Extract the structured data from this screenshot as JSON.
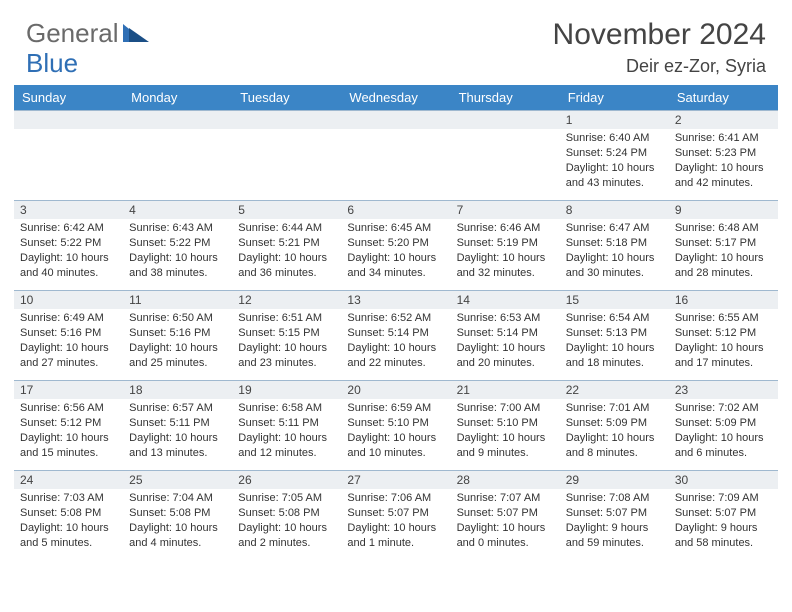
{
  "logo": {
    "text1": "General",
    "text2": "Blue"
  },
  "header": {
    "title": "November 2024",
    "location": "Deir ez-Zor, Syria"
  },
  "style": {
    "header_bg": "#3b85c6",
    "header_fg": "#ffffff",
    "border_color": "#9fb8cf",
    "daynum_bg": "#eceff2",
    "text_color": "#333333",
    "title_color": "#444444",
    "logo_gray": "#6a6a6a",
    "logo_blue": "#2f6fb5",
    "font_day": 11,
    "font_header": 13,
    "font_title": 30,
    "font_location": 18
  },
  "weekdays": [
    "Sunday",
    "Monday",
    "Tuesday",
    "Wednesday",
    "Thursday",
    "Friday",
    "Saturday"
  ],
  "weeks": [
    [
      null,
      null,
      null,
      null,
      null,
      {
        "n": "1",
        "sr": "6:40 AM",
        "ss": "5:24 PM",
        "dl": "10 hours and 43 minutes."
      },
      {
        "n": "2",
        "sr": "6:41 AM",
        "ss": "5:23 PM",
        "dl": "10 hours and 42 minutes."
      }
    ],
    [
      {
        "n": "3",
        "sr": "6:42 AM",
        "ss": "5:22 PM",
        "dl": "10 hours and 40 minutes."
      },
      {
        "n": "4",
        "sr": "6:43 AM",
        "ss": "5:22 PM",
        "dl": "10 hours and 38 minutes."
      },
      {
        "n": "5",
        "sr": "6:44 AM",
        "ss": "5:21 PM",
        "dl": "10 hours and 36 minutes."
      },
      {
        "n": "6",
        "sr": "6:45 AM",
        "ss": "5:20 PM",
        "dl": "10 hours and 34 minutes."
      },
      {
        "n": "7",
        "sr": "6:46 AM",
        "ss": "5:19 PM",
        "dl": "10 hours and 32 minutes."
      },
      {
        "n": "8",
        "sr": "6:47 AM",
        "ss": "5:18 PM",
        "dl": "10 hours and 30 minutes."
      },
      {
        "n": "9",
        "sr": "6:48 AM",
        "ss": "5:17 PM",
        "dl": "10 hours and 28 minutes."
      }
    ],
    [
      {
        "n": "10",
        "sr": "6:49 AM",
        "ss": "5:16 PM",
        "dl": "10 hours and 27 minutes."
      },
      {
        "n": "11",
        "sr": "6:50 AM",
        "ss": "5:16 PM",
        "dl": "10 hours and 25 minutes."
      },
      {
        "n": "12",
        "sr": "6:51 AM",
        "ss": "5:15 PM",
        "dl": "10 hours and 23 minutes."
      },
      {
        "n": "13",
        "sr": "6:52 AM",
        "ss": "5:14 PM",
        "dl": "10 hours and 22 minutes."
      },
      {
        "n": "14",
        "sr": "6:53 AM",
        "ss": "5:14 PM",
        "dl": "10 hours and 20 minutes."
      },
      {
        "n": "15",
        "sr": "6:54 AM",
        "ss": "5:13 PM",
        "dl": "10 hours and 18 minutes."
      },
      {
        "n": "16",
        "sr": "6:55 AM",
        "ss": "5:12 PM",
        "dl": "10 hours and 17 minutes."
      }
    ],
    [
      {
        "n": "17",
        "sr": "6:56 AM",
        "ss": "5:12 PM",
        "dl": "10 hours and 15 minutes."
      },
      {
        "n": "18",
        "sr": "6:57 AM",
        "ss": "5:11 PM",
        "dl": "10 hours and 13 minutes."
      },
      {
        "n": "19",
        "sr": "6:58 AM",
        "ss": "5:11 PM",
        "dl": "10 hours and 12 minutes."
      },
      {
        "n": "20",
        "sr": "6:59 AM",
        "ss": "5:10 PM",
        "dl": "10 hours and 10 minutes."
      },
      {
        "n": "21",
        "sr": "7:00 AM",
        "ss": "5:10 PM",
        "dl": "10 hours and 9 minutes."
      },
      {
        "n": "22",
        "sr": "7:01 AM",
        "ss": "5:09 PM",
        "dl": "10 hours and 8 minutes."
      },
      {
        "n": "23",
        "sr": "7:02 AM",
        "ss": "5:09 PM",
        "dl": "10 hours and 6 minutes."
      }
    ],
    [
      {
        "n": "24",
        "sr": "7:03 AM",
        "ss": "5:08 PM",
        "dl": "10 hours and 5 minutes."
      },
      {
        "n": "25",
        "sr": "7:04 AM",
        "ss": "5:08 PM",
        "dl": "10 hours and 4 minutes."
      },
      {
        "n": "26",
        "sr": "7:05 AM",
        "ss": "5:08 PM",
        "dl": "10 hours and 2 minutes."
      },
      {
        "n": "27",
        "sr": "7:06 AM",
        "ss": "5:07 PM",
        "dl": "10 hours and 1 minute."
      },
      {
        "n": "28",
        "sr": "7:07 AM",
        "ss": "5:07 PM",
        "dl": "10 hours and 0 minutes."
      },
      {
        "n": "29",
        "sr": "7:08 AM",
        "ss": "5:07 PM",
        "dl": "9 hours and 59 minutes."
      },
      {
        "n": "30",
        "sr": "7:09 AM",
        "ss": "5:07 PM",
        "dl": "9 hours and 58 minutes."
      }
    ]
  ],
  "labels": {
    "sunrise": "Sunrise: ",
    "sunset": "Sunset: ",
    "daylight": "Daylight: "
  }
}
